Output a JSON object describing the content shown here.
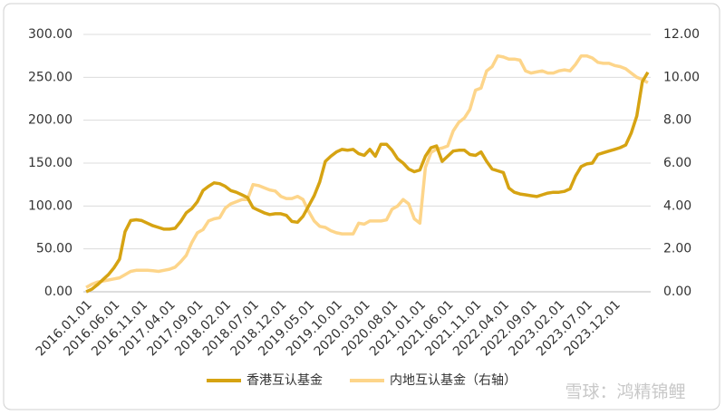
{
  "chart_data": {
    "type": "line",
    "categories": [
      "2016.01.01",
      null,
      null,
      null,
      null,
      "2016.06.01",
      null,
      null,
      null,
      null,
      "2016.11.01",
      null,
      null,
      null,
      null,
      "2017.04.01",
      null,
      null,
      null,
      null,
      "2017.09.01",
      null,
      null,
      null,
      null,
      "2018.02.01",
      null,
      null,
      null,
      null,
      "2018.07.01",
      null,
      null,
      null,
      null,
      "2018.12.01",
      null,
      null,
      null,
      null,
      "2019.05.01",
      null,
      null,
      null,
      null,
      "2019.10.01",
      null,
      null,
      null,
      null,
      "2020.03.01",
      null,
      null,
      null,
      null,
      "2020.08.01",
      null,
      null,
      null,
      null,
      "2021.01.01",
      null,
      null,
      null,
      null,
      "2021.06.01",
      null,
      null,
      null,
      null,
      "2021.11.01",
      null,
      null,
      null,
      null,
      "2022.04.01",
      null,
      null,
      null,
      null,
      "2022.09.01",
      null,
      null,
      null,
      null,
      "2023.02.01",
      null,
      null,
      null,
      null,
      "2023.07.01",
      null,
      null,
      null,
      null,
      "2023.12.01",
      null,
      null,
      null,
      null,
      null,
      null
    ],
    "series": [
      {
        "name": "香港互认基金",
        "color": "#d6a312",
        "values": [
          0,
          3,
          8,
          14,
          20,
          28,
          38,
          70,
          83,
          84,
          83,
          80,
          77,
          75,
          73,
          73,
          74,
          82,
          92,
          97,
          105,
          118,
          123,
          127,
          126,
          123,
          118,
          116,
          113,
          110,
          98,
          95,
          92,
          90,
          91,
          91,
          89,
          82,
          81,
          88,
          100,
          112,
          128,
          152,
          158,
          163,
          166,
          165,
          166,
          161,
          159,
          166,
          158,
          172,
          172,
          165,
          155,
          150,
          143,
          140,
          142,
          158,
          168,
          170,
          152,
          158,
          164,
          165,
          165,
          160,
          159,
          163,
          152,
          143,
          141,
          139,
          121,
          116,
          114,
          113,
          112,
          111,
          113,
          115,
          116,
          116,
          117,
          120,
          135,
          146,
          149,
          150,
          160,
          162,
          164,
          166,
          168,
          171,
          185,
          205,
          245,
          256
        ]
      },
      {
        "name": "内地互认基金（右轴）",
        "color": "#fdd58a",
        "axis": "y2",
        "values": [
          0.2,
          0.35,
          0.45,
          0.5,
          0.55,
          0.6,
          0.65,
          0.8,
          0.95,
          1.0,
          1.0,
          1.0,
          0.98,
          0.95,
          1.0,
          1.05,
          1.15,
          1.4,
          1.7,
          2.3,
          2.75,
          2.9,
          3.3,
          3.4,
          3.45,
          3.9,
          4.1,
          4.2,
          4.3,
          4.3,
          5.0,
          4.95,
          4.85,
          4.75,
          4.7,
          4.45,
          4.35,
          4.35,
          4.45,
          4.3,
          3.75,
          3.3,
          3.05,
          3.0,
          2.85,
          2.75,
          2.7,
          2.7,
          2.7,
          3.2,
          3.15,
          3.3,
          3.3,
          3.3,
          3.35,
          3.85,
          4.0,
          4.3,
          4.1,
          3.4,
          3.2,
          5.8,
          6.5,
          6.65,
          6.7,
          6.8,
          7.5,
          7.9,
          8.1,
          8.5,
          9.4,
          9.5,
          10.3,
          10.5,
          11.0,
          10.95,
          10.85,
          10.85,
          10.8,
          10.3,
          10.2,
          10.25,
          10.3,
          10.2,
          10.2,
          10.3,
          10.35,
          10.3,
          10.6,
          11.0,
          11.0,
          10.9,
          10.7,
          10.65,
          10.65,
          10.55,
          10.5,
          10.4,
          10.2,
          10.0,
          9.9,
          9.75
        ]
      }
    ],
    "ylim": [
      0,
      300
    ],
    "yticks": [
      {
        "value": 0,
        "label": "0.00"
      },
      {
        "value": 50,
        "label": "50.00"
      },
      {
        "value": 100,
        "label": "100.00"
      },
      {
        "value": 150,
        "label": "150.00"
      },
      {
        "value": 200,
        "label": "200.00"
      },
      {
        "value": 250,
        "label": "250.00"
      },
      {
        "value": 300,
        "label": "300.00"
      }
    ],
    "y2lim": [
      0,
      12
    ],
    "y2ticks": [
      {
        "value": 0,
        "label": "0.00"
      },
      {
        "value": 2,
        "label": "2.00"
      },
      {
        "value": 4,
        "label": "4.00"
      },
      {
        "value": 6,
        "label": "6.00"
      },
      {
        "value": 8,
        "label": "8.00"
      },
      {
        "value": 10,
        "label": "10.00"
      },
      {
        "value": 12,
        "label": "12.00"
      }
    ],
    "grid": true,
    "legend": "bottom",
    "watermark": "雪球：鸿精锦鲤"
  }
}
